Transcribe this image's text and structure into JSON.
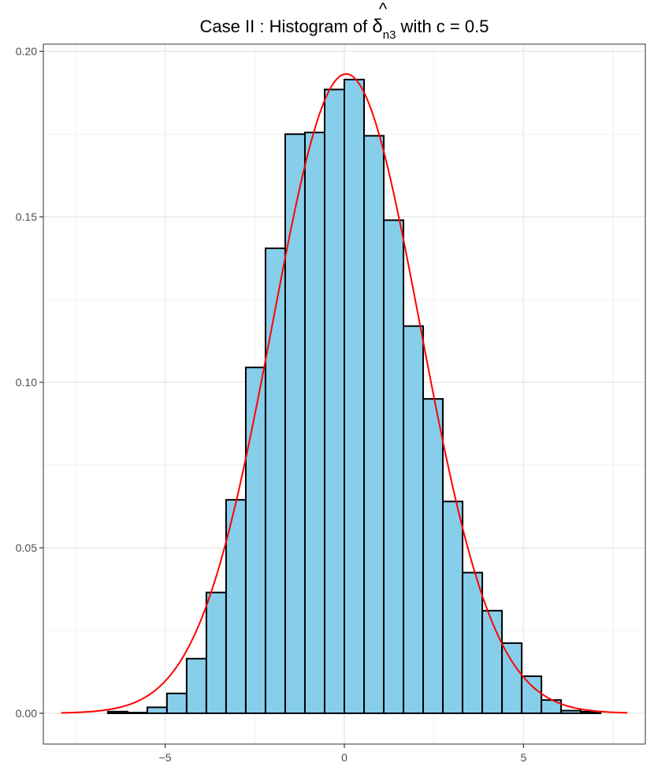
{
  "chart_data": {
    "type": "bar",
    "title": {
      "prefix": "Case II :  Histogram of ",
      "symbol": "δ",
      "accent": "^",
      "subscript": "n3",
      "suffix": " with c = 0.5"
    },
    "xlabel": "",
    "ylabel": "",
    "xlim": [
      -8.4,
      8.4
    ],
    "ylim": [
      -0.0093,
      0.2022
    ],
    "x_ticks": [
      -5,
      0,
      5
    ],
    "x_tick_labels": [
      "−5",
      "0",
      "5"
    ],
    "y_ticks": [
      0.0,
      0.05,
      0.1,
      0.15,
      0.2
    ],
    "y_tick_labels": [
      "0.00",
      "0.05",
      "0.10",
      "0.15",
      "0.20"
    ],
    "grid": true,
    "bins": {
      "left_edges": [
        -6.6,
        -6.05,
        -5.5,
        -4.95,
        -4.4,
        -3.85,
        -3.3,
        -2.75,
        -2.2,
        -1.65,
        -1.1,
        -0.55,
        0.0,
        0.55,
        1.1,
        1.65,
        2.2,
        2.75,
        3.3,
        3.85,
        4.4,
        4.95,
        5.5,
        6.05,
        6.6
      ],
      "width": 0.55,
      "values": [
        0.0005,
        0.0002,
        0.0018,
        0.006,
        0.0165,
        0.0365,
        0.0645,
        0.1045,
        0.1405,
        0.175,
        0.1755,
        0.1885,
        0.1915,
        0.1745,
        0.149,
        0.117,
        0.095,
        0.064,
        0.0425,
        0.031,
        0.0212,
        0.0112,
        0.004,
        0.0008,
        0.0005
      ]
    },
    "bar_fill": "#87ceeb",
    "bar_stroke": "#000000",
    "density_curve": {
      "type": "normal",
      "mean": 0.05,
      "sd": 2.065,
      "x_range": [
        -7.9,
        7.9
      ],
      "color": "#ff0000"
    }
  }
}
